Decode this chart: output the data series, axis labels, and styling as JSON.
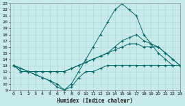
{
  "xlabel": "Humidex (Indice chaleur)",
  "bg_color": "#c8eaea",
  "line_color": "#006666",
  "grid_color": "#aad4d4",
  "ylim": [
    9,
    23
  ],
  "xlim": [
    -0.5,
    23
  ],
  "yticks": [
    9,
    10,
    11,
    12,
    13,
    14,
    15,
    16,
    17,
    18,
    19,
    20,
    21,
    22,
    23
  ],
  "xticks": [
    0,
    1,
    2,
    3,
    4,
    5,
    6,
    7,
    8,
    9,
    10,
    11,
    12,
    13,
    14,
    15,
    16,
    17,
    18,
    19,
    20,
    21,
    22,
    23
  ],
  "series": {
    "s1_max": [
      13,
      12,
      12,
      11.5,
      11,
      10.5,
      10,
      9,
      10,
      12,
      14,
      16,
      18,
      20,
      22,
      23,
      22,
      21,
      18,
      16.5,
      15,
      14,
      13,
      13
    ],
    "s2_upper": [
      13,
      12.5,
      12,
      12,
      12,
      12,
      12,
      12,
      12.5,
      13,
      13.5,
      14,
      14.5,
      15,
      16,
      17,
      17.5,
      18,
      17,
      16.5,
      16,
      15,
      14,
      13
    ],
    "s3_lower": [
      13,
      12.5,
      12,
      12,
      12,
      12,
      12,
      12,
      12.5,
      13,
      13.5,
      14,
      14.5,
      15,
      15.5,
      16,
      16.5,
      16.5,
      16,
      16,
      16,
      15,
      14,
      13
    ],
    "s4_min": [
      13,
      12,
      12,
      11.5,
      11,
      10.5,
      9.5,
      9,
      9.5,
      11,
      12,
      12,
      12.5,
      13,
      13,
      13,
      13,
      13,
      13,
      13,
      13,
      13,
      13,
      13
    ]
  }
}
